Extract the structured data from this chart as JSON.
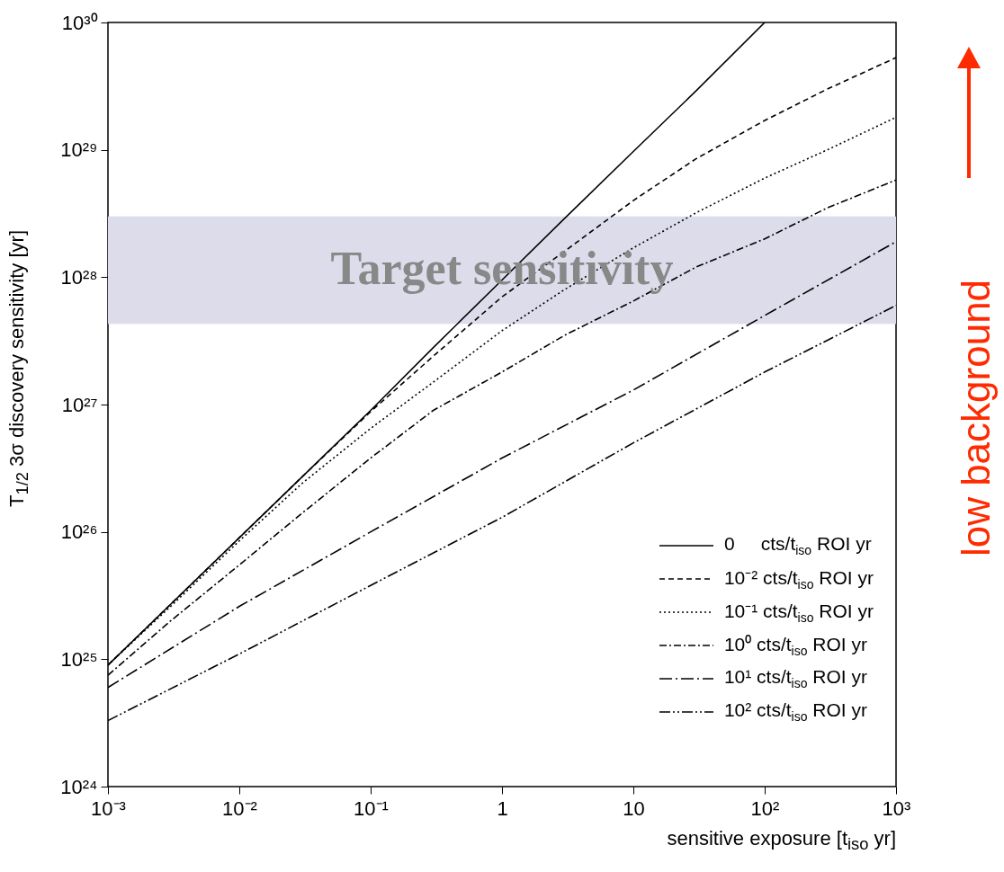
{
  "chart_data": {
    "type": "line",
    "xlabel": "sensitive exposure [t$_{iso}$ yr]",
    "ylabel": "T$_{1/2}$ 3σ discovery sensitivity [yr]",
    "log": "xy",
    "grid": false,
    "legend": "bottom right",
    "marker": "none",
    "xlim": [
      0.001,
      1000
    ],
    "ylim": [
      1e+24,
      1e+30
    ],
    "xticks": [
      {
        "value": 0.001,
        "label": "10⁻³"
      },
      {
        "value": 0.01,
        "label": "10⁻²"
      },
      {
        "value": 0.1,
        "label": "10⁻¹"
      },
      1,
      10,
      {
        "value": 100,
        "label": "10²"
      },
      {
        "value": 1000,
        "label": "10³"
      }
    ],
    "yticks": [
      {
        "value": 1e+24,
        "label": "10²⁴"
      },
      {
        "value": 1e+25,
        "label": "10²⁵"
      },
      {
        "value": 1e+26,
        "label": "10²⁶"
      },
      {
        "value": 1e+27,
        "label": "10²⁷"
      },
      {
        "value": 1e+28,
        "label": "10²⁸"
      },
      {
        "value": 1e+29,
        "label": "10²⁹"
      },
      {
        "value": 1e+30,
        "label": "10³⁰"
      }
    ],
    "bands": [
      {
        "axis": "y",
        "from": 4.3e+27,
        "to": 3e+28,
        "label": "Target sensitivity",
        "color": "#dcdcea"
      }
    ],
    "annotations": [
      "low background"
    ],
    "series": [
      {
        "name": "0     cts/t$_{iso}$ ROI yr",
        "color": "#000000",
        "line_style": "solid",
        "x": [
          0.001,
          0.003,
          0.01,
          0.03,
          0.1,
          0.3,
          1,
          3,
          10,
          30,
          100
        ],
        "values": [
          9e+24,
          2.7e+25,
          9e+25,
          2.7e+26,
          9e+26,
          2.8e+27,
          9.5e+27,
          2.9e+28,
          9.7e+28,
          2.9e+29,
          1e+30
        ]
      },
      {
        "name": "10⁻² cts/t$_{iso}$ ROI yr",
        "color": "#000000",
        "line_style": "dashed",
        "x": [
          0.001,
          0.003,
          0.01,
          0.03,
          0.1,
          0.3,
          1,
          3,
          10,
          30,
          100,
          300,
          1000
        ],
        "values": [
          9e+24,
          2.7e+25,
          9e+25,
          2.7e+26,
          8.8e+26,
          2.4e+27,
          7e+27,
          1.6e+28,
          4e+28,
          8.5e+28,
          1.7e+29,
          3e+29,
          5.3e+29
        ]
      },
      {
        "name": "10⁻¹ cts/t$_{iso}$ ROI yr",
        "color": "#000000",
        "line_style": "dotted",
        "x": [
          0.001,
          0.003,
          0.01,
          0.03,
          0.1,
          0.3,
          1,
          3,
          10,
          30,
          100,
          300,
          1000
        ],
        "values": [
          9e+24,
          2.6e+25,
          8.5e+25,
          2.4e+26,
          6.5e+26,
          1.5e+27,
          3.8e+27,
          8e+27,
          1.7e+28,
          3.2e+28,
          6e+28,
          1e+29,
          1.8e+29
        ]
      },
      {
        "name": "10⁰ cts/t$_{iso}$ ROI yr",
        "color": "#000000",
        "line_style": "dashdot",
        "x": [
          0.001,
          0.003,
          0.01,
          0.03,
          0.1,
          0.3,
          1,
          3,
          10,
          30,
          100,
          300,
          1000
        ],
        "values": [
          7.5e+24,
          2e+25,
          5.5e+25,
          1.4e+26,
          3.8e+26,
          9e+26,
          1.8e+27,
          3.5e+27,
          6.5e+27,
          1.2e+28,
          2e+28,
          3.5e+28,
          5.8e+28
        ]
      },
      {
        "name": "10¹ cts/t$_{iso}$ ROI yr",
        "color": "#000000",
        "line_style": "longdashdot",
        "x": [
          0.001,
          0.01,
          0.1,
          1,
          10,
          100,
          1000
        ],
        "values": [
          6e+24,
          2.6e+25,
          1e+26,
          3.8e+26,
          1.3e+27,
          5e+27,
          1.9e+28
        ]
      },
      {
        "name": "10² cts/t$_{iso}$ ROI yr",
        "color": "#000000",
        "line_style": "dashdotdot",
        "x": [
          0.001,
          0.01,
          0.1,
          1,
          10,
          100,
          1000
        ],
        "values": [
          3.3e+24,
          1.1e+25,
          3.8e+25,
          1.3e+26,
          5e+26,
          1.8e+27,
          6e+27
        ]
      }
    ]
  }
}
